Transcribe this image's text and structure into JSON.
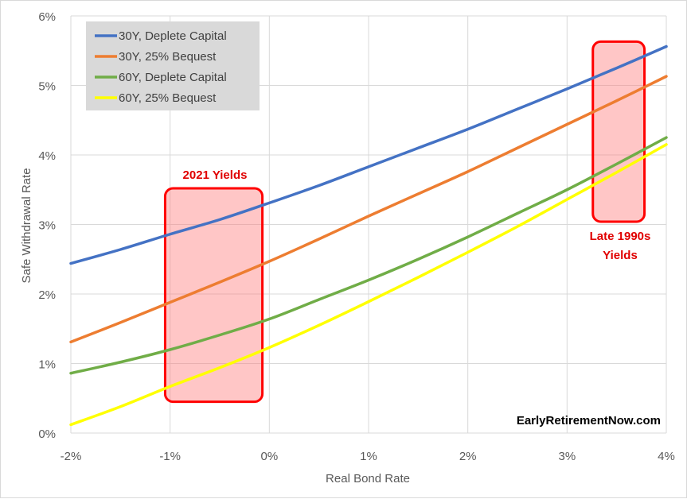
{
  "chart_data": {
    "type": "line",
    "xlabel": "Real Bond Rate",
    "ylabel": "Safe Withdrawal Rate",
    "xlim": [
      -2,
      4
    ],
    "ylim": [
      0,
      6
    ],
    "x_ticks": [
      -2,
      -1,
      0,
      1,
      2,
      3,
      4
    ],
    "x_tick_labels": [
      "-2%",
      "-1%",
      "0%",
      "1%",
      "2%",
      "3%",
      "4%"
    ],
    "y_ticks": [
      0,
      1,
      2,
      3,
      4,
      5,
      6
    ],
    "y_tick_labels": [
      "0%",
      "1%",
      "2%",
      "3%",
      "4%",
      "5%",
      "6%"
    ],
    "grid": "vertical and horizontal",
    "legend_position": "top-left",
    "series": [
      {
        "name": "30Y, Deplete Capital",
        "color": "#4472c4",
        "x": [
          -2,
          -1.5,
          -1,
          -0.5,
          0,
          0.5,
          1,
          1.5,
          2,
          2.5,
          3,
          3.5,
          4
        ],
        "y": [
          2.44,
          2.64,
          2.86,
          3.07,
          3.31,
          3.56,
          3.83,
          4.1,
          4.37,
          4.66,
          4.95,
          5.25,
          5.56
        ]
      },
      {
        "name": "30Y, 25% Bequest",
        "color": "#ed7d31",
        "x": [
          -2,
          -1.5,
          -1,
          -0.5,
          0,
          0.5,
          1,
          1.5,
          2,
          2.5,
          3,
          3.5,
          4
        ],
        "y": [
          1.31,
          1.59,
          1.88,
          2.17,
          2.47,
          2.79,
          3.12,
          3.44,
          3.76,
          4.1,
          4.44,
          4.78,
          5.13
        ]
      },
      {
        "name": "60Y, Deplete Capital",
        "color": "#70ad47",
        "x": [
          -2,
          -1.5,
          -1,
          -0.5,
          0,
          0.5,
          1,
          1.5,
          2,
          2.5,
          3,
          3.5,
          4
        ],
        "y": [
          0.86,
          1.02,
          1.2,
          1.41,
          1.64,
          1.92,
          2.2,
          2.5,
          2.82,
          3.16,
          3.5,
          3.87,
          4.25
        ]
      },
      {
        "name": "60Y, 25% Bequest",
        "color": "#ffff00",
        "x": [
          -2,
          -1.5,
          -1,
          -0.5,
          0,
          0.5,
          1,
          1.5,
          2,
          2.5,
          3,
          3.5,
          4
        ],
        "y": [
          0.12,
          0.38,
          0.67,
          0.94,
          1.23,
          1.55,
          1.89,
          2.24,
          2.6,
          2.97,
          3.36,
          3.75,
          4.15
        ]
      }
    ],
    "highlights": [
      {
        "label": "2021 Yields",
        "x_range": [
          -1.05,
          -0.07
        ],
        "y_range": [
          0.45,
          3.52
        ]
      },
      {
        "label_lines": [
          "Late 1990s",
          "Yields"
        ],
        "x_range": [
          3.26,
          3.78
        ],
        "y_range": [
          3.04,
          5.63
        ]
      }
    ],
    "credit": "EarlyRetirementNow.com"
  }
}
